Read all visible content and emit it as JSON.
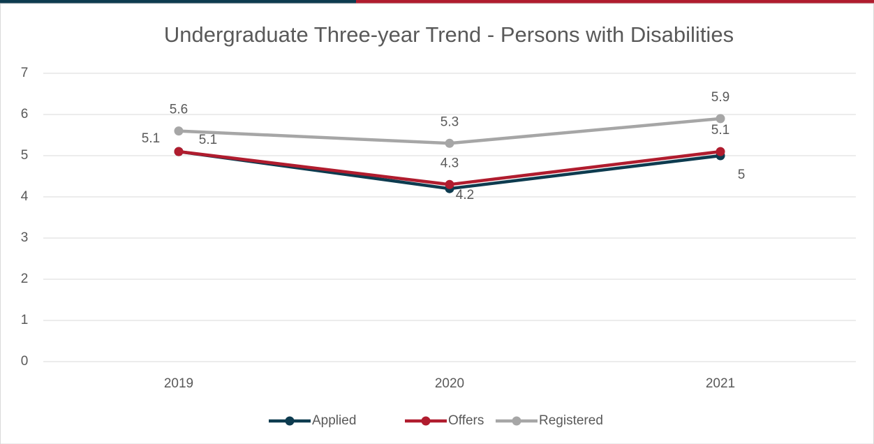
{
  "chart_data": {
    "type": "line",
    "title": "Undergraduate Three-year Trend - Persons with Disabilities",
    "categories": [
      "2019",
      "2020",
      "2021"
    ],
    "series": [
      {
        "name": "Applied",
        "color": "#0d3b4f",
        "values": [
          5.1,
          4.2,
          5
        ]
      },
      {
        "name": "Offers",
        "color": "#b01c2e",
        "values": [
          5.1,
          4.3,
          5.1
        ]
      },
      {
        "name": "Registered",
        "color": "#a6a6a6",
        "values": [
          5.6,
          5.3,
          5.9
        ]
      }
    ],
    "ylim": [
      0,
      7
    ],
    "yticks": [
      0,
      1,
      2,
      3,
      4,
      5,
      6,
      7
    ],
    "grid": true,
    "legend": "bottom"
  }
}
